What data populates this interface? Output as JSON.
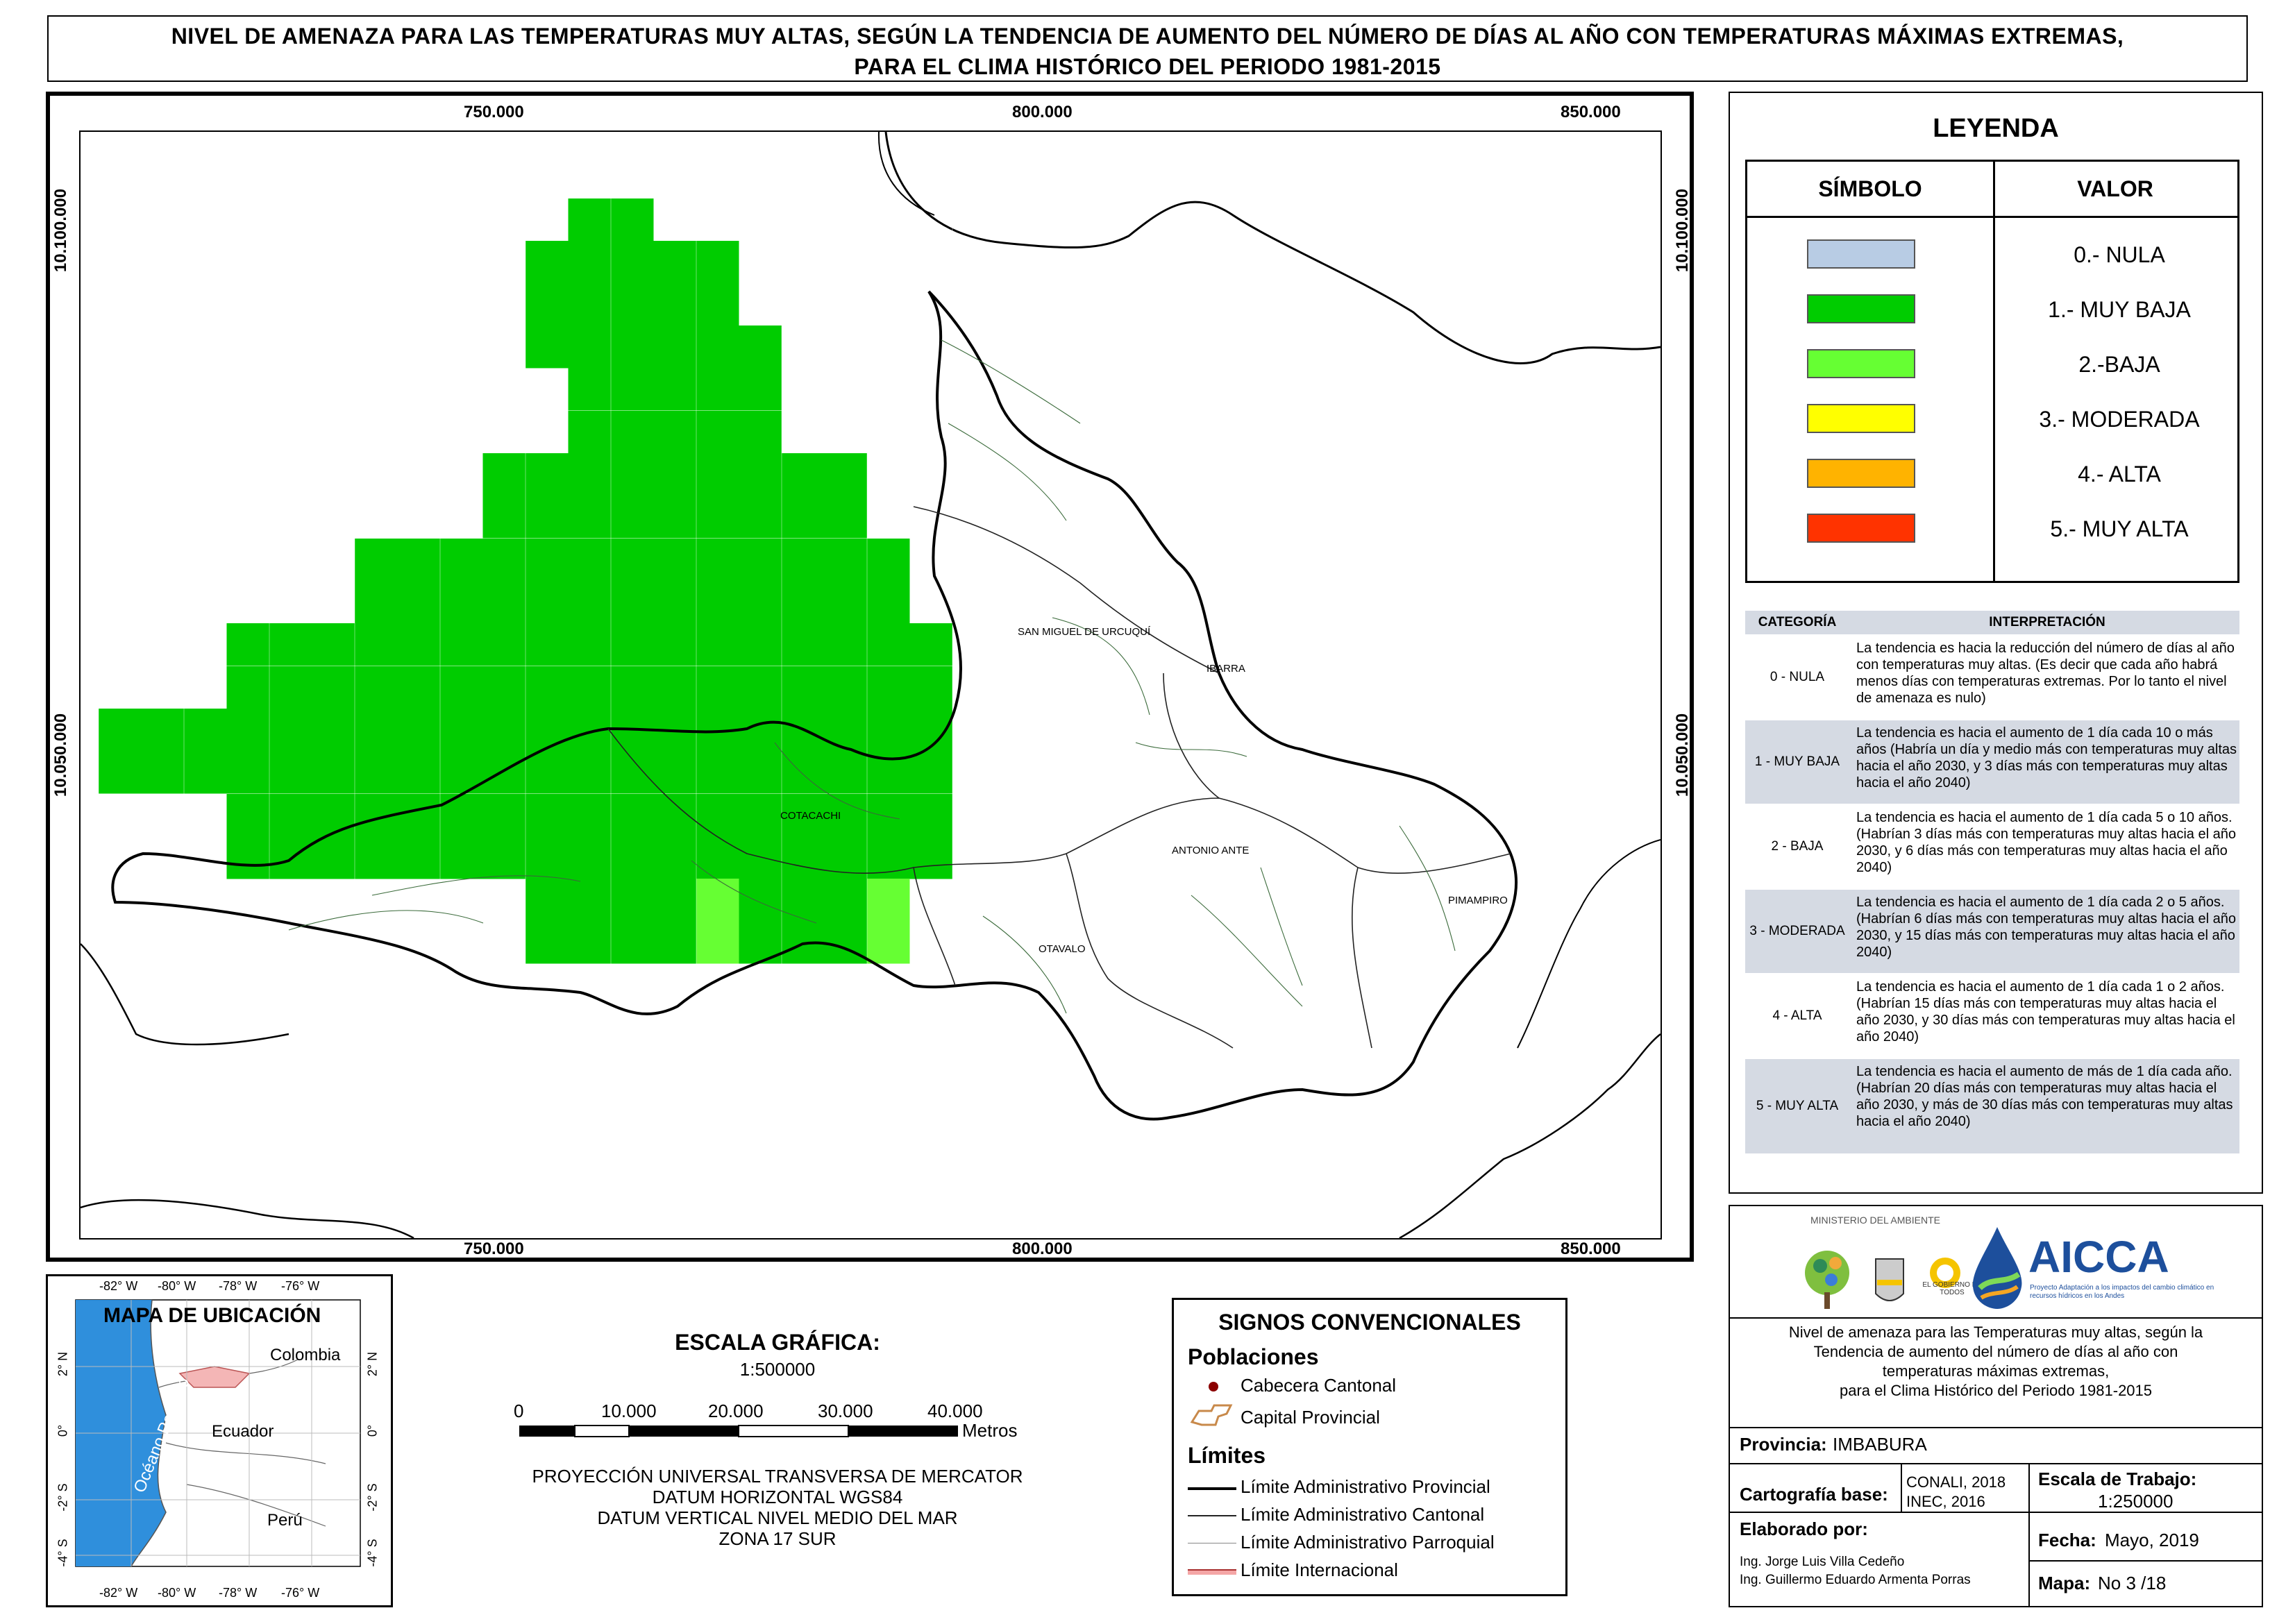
{
  "title": {
    "line1": "NIVEL DE AMENAZA PARA LAS TEMPERATURAS MUY ALTAS, SEGÚN LA TENDENCIA DE AUMENTO DEL NÚMERO DE DÍAS AL AÑO CON TEMPERATURAS MÁXIMAS EXTREMAS,",
    "line2": "PARA EL CLIMA HISTÓRICO DEL PERIODO 1981-2015"
  },
  "map": {
    "x_ticks": [
      "750.000",
      "800.000",
      "850.000"
    ],
    "y_ticks": [
      "10.100.000",
      "10.050.000"
    ],
    "places": [
      "SAN MIGUEL DE URCUQUÍ",
      "IBARRA",
      "COTACACHI",
      "ANTONIO ANTE",
      "PIMAMPIRO",
      "OTAVALO"
    ],
    "colors": {
      "muy_baja": "#00cc00",
      "baja": "#66ff33"
    }
  },
  "legend": {
    "title": "LEYENDA",
    "col_symbol": "SÍMBOLO",
    "col_value": "VALOR",
    "items": [
      {
        "label": "0.- NULA",
        "color": "#b8cce4"
      },
      {
        "label": "1.- MUY BAJA",
        "color": "#00cc00"
      },
      {
        "label": "2.-BAJA",
        "color": "#66ff33"
      },
      {
        "label": "3.- MODERADA",
        "color": "#ffff00"
      },
      {
        "label": "4.- ALTA",
        "color": "#ffb300"
      },
      {
        "label": "5.- MUY ALTA",
        "color": "#ff3300"
      }
    ],
    "cat_header": "CATEGORÍA",
    "interp_header": "INTERPRETACIÓN",
    "categories": [
      {
        "name": "0 - NULA",
        "text": "La tendencia es hacia la reducción del número de días al año con temperaturas muy altas. (Es decir que cada año habrá menos días con temperaturas extremas. Por lo tanto el nivel de amenaza es nulo)"
      },
      {
        "name": "1 - MUY BAJA",
        "text": "La tendencia es hacia el aumento de 1 día cada 10 o más años (Habría un día y medio más con temperaturas muy altas hacia el año 2030, y 3 días más con temperaturas muy altas hacia el año 2040)"
      },
      {
        "name": "2 - BAJA",
        "text": "La tendencia es hacia el aumento de 1 día cada 5 o 10 años. (Habrían 3 días más con temperaturas muy altas hacia el año 2030, y 6 días más con temperaturas muy altas hacia el año 2040)"
      },
      {
        "name": "3 - MODERADA",
        "text": "La tendencia es hacia el aumento de 1 día cada 2 o 5 años. (Habrían 6 días más con temperaturas muy altas hacia el año 2030, y 15 días más con temperaturas muy altas hacia el año 2040)"
      },
      {
        "name": "4 - ALTA",
        "text": "La tendencia es hacia el aumento de 1 día cada 1 o 2 años. (Habrían 15 días más con temperaturas muy altas hacia el año 2030, y 30 días más con temperaturas muy altas hacia el año 2040)"
      },
      {
        "name": "5 - MUY ALTA",
        "text": "La tendencia es hacia el aumento de más de 1 día cada año. (Habrían 20 días más con temperaturas muy altas hacia el año 2030, y más de 30 días más con temperaturas muy altas hacia el año 2040)"
      }
    ]
  },
  "info": {
    "ministry": "MINISTERIO DEL AMBIENTE",
    "gobierno": "EL GOBIERNO DE TODOS",
    "aicca": "AICCA",
    "aicca_sub": "Proyecto Adaptación a los impactos del cambio climático en recursos hídricos en los Andes",
    "description": [
      "Nivel de amenaza para las Temperaturas muy altas, según la",
      "Tendencia de aumento del número de días al año con",
      "temperaturas máximas extremas,",
      "para el Clima Histórico del Periodo 1981-2015"
    ],
    "provincia_label": "Provincia:",
    "provincia": "IMBABURA",
    "cartografia_label": "Cartografía base:",
    "cartografia": [
      "CONALI, 2018",
      "INEC, 2016"
    ],
    "escala_label": "Escala de Trabajo:",
    "escala": "1:250000",
    "elaborado_label": "Elaborado por:",
    "elaborado": [
      "Ing. Jorge Luis Villa Cedeño",
      "Ing. Guillermo Eduardo Armenta Porras"
    ],
    "fecha_label": "Fecha:",
    "fecha": "Mayo, 2019",
    "mapa_label": "Mapa:",
    "mapa": "No 3 /18"
  },
  "location_map": {
    "title": "MAPA DE UBICACIÓN",
    "lon_ticks": [
      "-82° W",
      "-80° W",
      "-78° W",
      "-76° W"
    ],
    "lat_ticks": [
      "2° N",
      "0°",
      "-2° S",
      "-4° S"
    ],
    "countries": [
      "Colombia",
      "Ecuador",
      "Perú"
    ],
    "ocean": "Océano Pacífico"
  },
  "scale": {
    "title": "ESCALA GRÁFICA:",
    "ratio": "1:500000",
    "ticks": [
      "0",
      "10.000",
      "20.000",
      "30.000",
      "40.000"
    ],
    "unit": "Metros",
    "projection": [
      "PROYECCIÓN UNIVERSAL TRANSVERSA DE MERCATOR",
      "DATUM HORIZONTAL WGS84",
      "DATUM VERTICAL NIVEL MEDIO DEL MAR",
      "ZONA 17 SUR"
    ]
  },
  "signs": {
    "title": "SIGNOS CONVENCIONALES",
    "poblaciones": "Poblaciones",
    "cabecera": "Cabecera Cantonal",
    "capital": "Capital Provincial",
    "limites": "Límites",
    "provincial": "Límite Administrativo Provincial",
    "cantonal": "Límite Administrativo Cantonal",
    "parroquial": "Límite Administrativo Parroquial",
    "internacional": "Límite Internacional"
  }
}
